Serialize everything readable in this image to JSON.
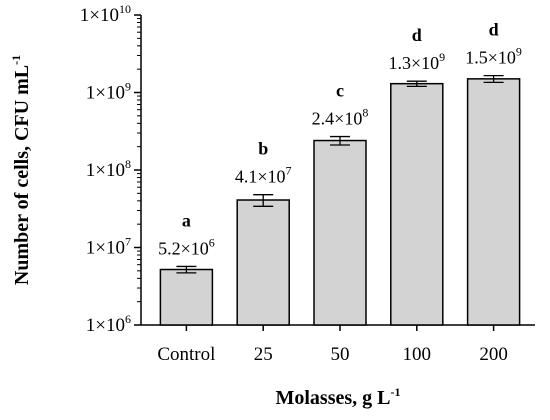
{
  "chart_data": {
    "type": "bar",
    "title": "",
    "xlabel": "Molasses, g L",
    "xlabel_superscript": "-1",
    "ylabel": "Number of cells, CFU mL",
    "ylabel_superscript": "-1",
    "yscale": "log",
    "ylim": [
      1000000,
      10000000000
    ],
    "y_ticks": [
      {
        "value": 1000000,
        "base": "1×10",
        "exp": "6"
      },
      {
        "value": 10000000,
        "base": "1×10",
        "exp": "7"
      },
      {
        "value": 100000000,
        "base": "1×10",
        "exp": "8"
      },
      {
        "value": 1000000000,
        "base": "1×10",
        "exp": "9"
      },
      {
        "value": 10000000000,
        "base": "1×10",
        "exp": "10"
      }
    ],
    "categories": [
      "Control",
      "25",
      "50",
      "100",
      "200"
    ],
    "values": [
      5200000,
      41000000,
      240000000,
      1300000000,
      1500000000
    ],
    "error": [
      500000,
      7000000,
      30000000,
      100000000,
      150000000
    ],
    "value_labels": [
      {
        "base": "5.2×10",
        "exp": "6"
      },
      {
        "base": "4.1×10",
        "exp": "7"
      },
      {
        "base": "2.4×10",
        "exp": "8"
      },
      {
        "base": "1.3×10",
        "exp": "9"
      },
      {
        "base": "1.5×10",
        "exp": "9"
      }
    ],
    "significance_letters": [
      "a",
      "b",
      "c",
      "d",
      "d"
    ],
    "bar_color": "#d3d3d3",
    "bar_edge_color": "#000000",
    "grid": false,
    "legend": "none"
  }
}
